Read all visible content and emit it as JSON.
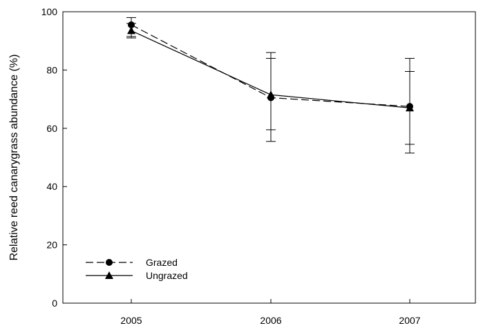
{
  "chart_data": {
    "type": "line",
    "title": "",
    "xlabel": "",
    "ylabel": "Relative reed canarygrass abundance (%)",
    "x": [
      "2005",
      "2006",
      "2007"
    ],
    "ylim": [
      0,
      100
    ],
    "yticks": [
      0,
      20,
      40,
      60,
      80,
      100
    ],
    "grid": false,
    "legend_position": "bottom-left",
    "series": [
      {
        "name": "Grazed",
        "marker": "circle",
        "line_style": "dashed",
        "color": "#000000",
        "values": [
          95.5,
          70.5,
          67.5
        ],
        "error_low": [
          91.5,
          55.5,
          51.5
        ],
        "error_high": [
          98.0,
          86.0,
          84.0
        ]
      },
      {
        "name": "Ungrazed",
        "marker": "triangle",
        "line_style": "solid",
        "color": "#000000",
        "values": [
          93.5,
          71.5,
          67.0
        ],
        "error_low": [
          91.0,
          59.5,
          54.5
        ],
        "error_high": [
          96.0,
          84.0,
          79.5
        ]
      }
    ]
  }
}
